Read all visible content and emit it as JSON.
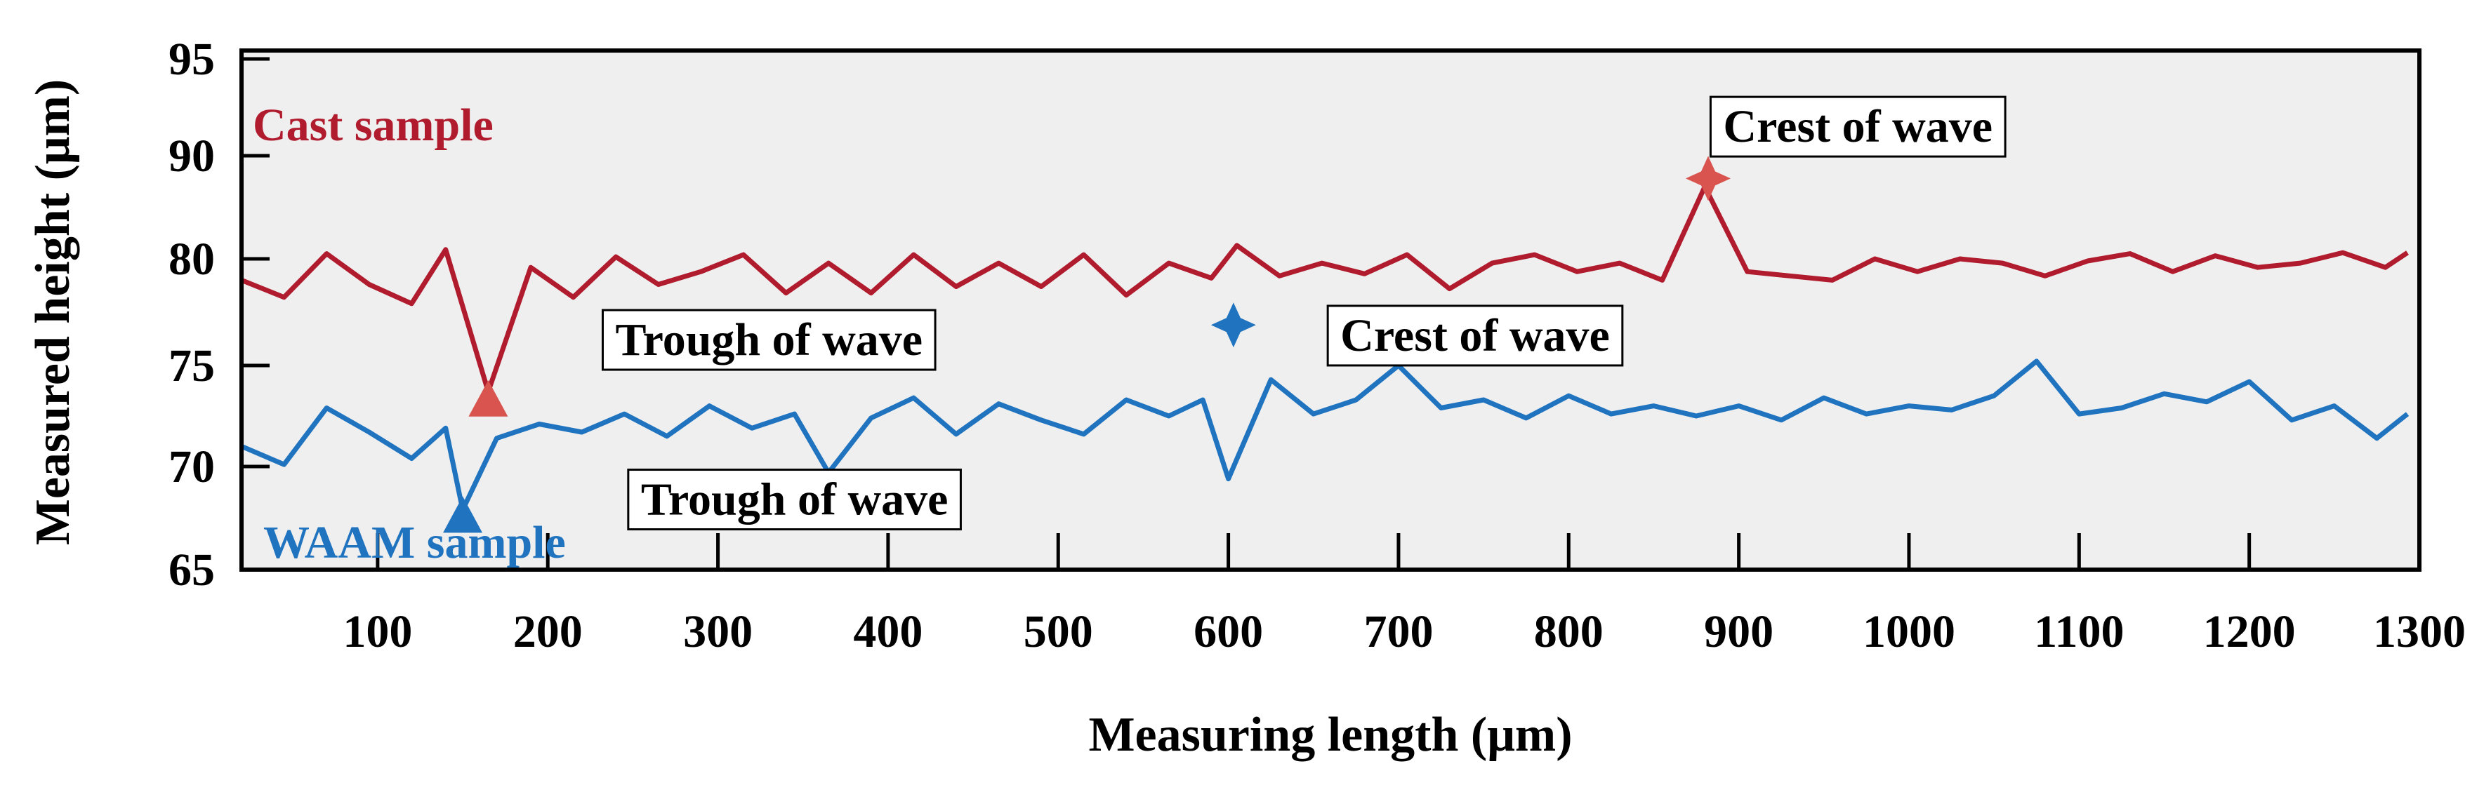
{
  "chart_data": {
    "type": "line",
    "title": "",
    "xlabel": "Measuring length  (μm)",
    "ylabel": "Measured height (μm)",
    "xlim": [
      20,
      1300
    ],
    "x_ticks": [
      100,
      200,
      300,
      400,
      500,
      600,
      700,
      800,
      900,
      1000,
      1100,
      1200,
      1300
    ],
    "y_ticks": [
      65,
      70,
      75,
      80,
      90,
      95
    ],
    "y_tick_labels": [
      "65",
      "70",
      "75",
      "80",
      "90",
      "95"
    ],
    "y_note": "axis is non-linear (equal spacing, 80 to 90 step)",
    "background": "#efefef",
    "series": [
      {
        "name": "Cast sample",
        "color": "#b01c2e",
        "x": [
          20,
          45,
          70,
          95,
          120,
          140,
          165,
          190,
          215,
          240,
          265,
          290,
          315,
          340,
          365,
          390,
          415,
          440,
          465,
          490,
          515,
          540,
          565,
          590,
          605,
          630,
          655,
          680,
          705,
          730,
          755,
          780,
          805,
          830,
          855,
          880,
          905,
          930,
          955,
          980,
          1005,
          1030,
          1055,
          1080,
          1105,
          1130,
          1155,
          1180,
          1205,
          1230,
          1255,
          1280,
          1293
        ],
        "values": [
          79.0,
          78.2,
          80.5,
          78.8,
          77.9,
          80.9,
          73.7,
          79.6,
          78.2,
          80.2,
          78.8,
          79.4,
          80.4,
          78.4,
          79.8,
          78.4,
          80.4,
          78.7,
          79.8,
          78.7,
          80.4,
          78.3,
          79.8,
          79.1,
          81.3,
          79.2,
          79.8,
          79.3,
          80.4,
          78.6,
          79.8,
          80.4,
          79.4,
          79.8,
          79.0,
          87.0,
          79.4,
          79.2,
          79.0,
          80.0,
          79.4,
          80.0,
          79.8,
          79.2,
          79.9,
          80.5,
          79.4,
          80.3,
          79.6,
          79.8,
          80.6,
          79.6,
          80.6
        ]
      },
      {
        "name": "WAAM sample",
        "color": "#1f73bf",
        "x": [
          20,
          45,
          70,
          95,
          120,
          140,
          150,
          170,
          195,
          220,
          245,
          270,
          295,
          320,
          345,
          365,
          390,
          415,
          440,
          465,
          490,
          515,
          540,
          565,
          585,
          600,
          625,
          650,
          675,
          700,
          725,
          750,
          775,
          800,
          825,
          850,
          875,
          900,
          925,
          950,
          975,
          1000,
          1025,
          1050,
          1075,
          1100,
          1125,
          1150,
          1175,
          1200,
          1225,
          1250,
          1275,
          1293
        ],
        "values": [
          71.0,
          70.1,
          72.9,
          71.7,
          70.4,
          71.9,
          67.9,
          71.4,
          72.1,
          71.7,
          72.6,
          71.5,
          73.0,
          71.9,
          72.6,
          69.7,
          72.4,
          73.4,
          71.6,
          73.1,
          72.3,
          71.6,
          73.3,
          72.5,
          73.3,
          69.4,
          74.3,
          72.6,
          73.3,
          75.0,
          72.9,
          73.3,
          72.4,
          73.5,
          72.6,
          73.0,
          72.5,
          73.0,
          72.3,
          73.4,
          72.6,
          73.0,
          72.8,
          73.5,
          75.2,
          72.6,
          72.9,
          73.6,
          73.2,
          74.2,
          72.3,
          73.0,
          71.4,
          72.6
        ]
      }
    ],
    "markers": [
      {
        "series": "Cast sample",
        "shape": "triangle",
        "color": "#d9544e",
        "x": 165,
        "y": 73.3
      },
      {
        "series": "WAAM sample",
        "shape": "triangle",
        "color": "#1f73bf",
        "x": 150,
        "y": 67.6
      },
      {
        "series": "WAAM sample",
        "shape": "star4",
        "color": "#1f73bf",
        "x": 603,
        "y": 76.9
      },
      {
        "series": "Cast sample",
        "shape": "star4",
        "color": "#d9544e",
        "x": 882,
        "y": 87.8
      }
    ],
    "annotations": [
      {
        "text": "Crest of wave",
        "series": "Cast sample",
        "x": 970,
        "y": 91.5
      },
      {
        "text": "Crest of wave",
        "series": "WAAM sample",
        "x": 745,
        "y": 76.4
      },
      {
        "text": "Trough of wave",
        "series": "Cast sample",
        "x": 330,
        "y": 76.2
      },
      {
        "text": "Trough of wave",
        "series": "WAAM sample",
        "x": 345,
        "y": 68.4
      }
    ]
  }
}
